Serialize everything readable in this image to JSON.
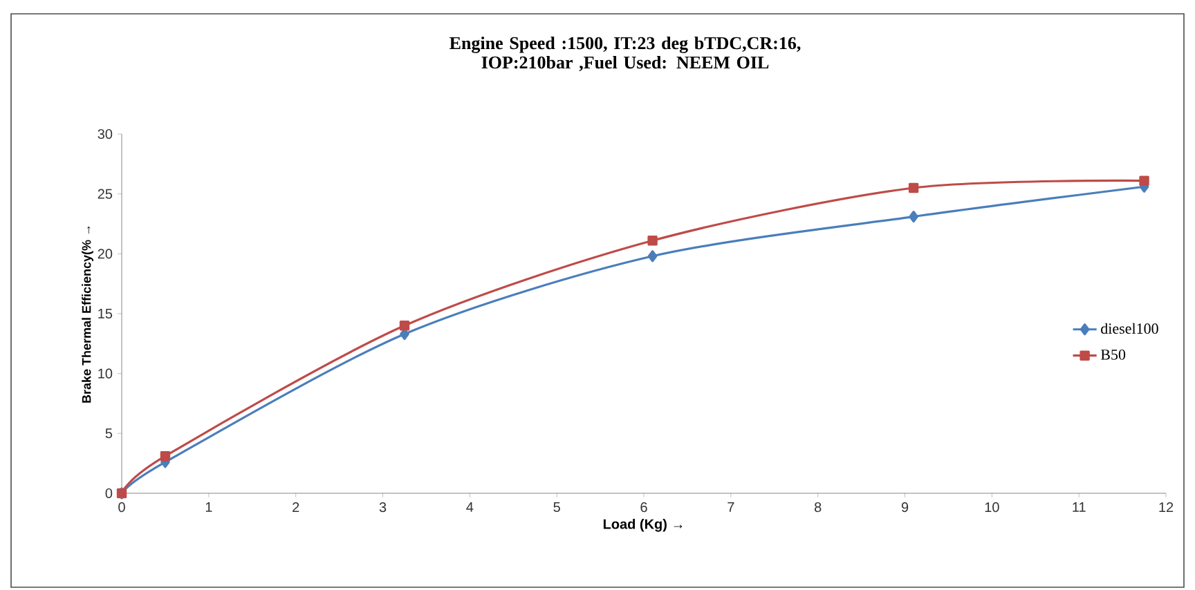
{
  "chart_data": {
    "type": "line",
    "title": "Engine Speed :1500, IT:23 deg bTDC,CR:16, IOP:210bar ,Fuel Used: NEEM OIL",
    "xlabel": "Load (Kg) →",
    "ylabel": "Brake Thermal Efficiency(% →",
    "x": [
      0,
      0.5,
      3.25,
      6.1,
      9.1,
      11.75
    ],
    "series": [
      {
        "name": "diesel100",
        "color": "#4a7ebb",
        "marker": "diamond",
        "values": [
          0,
          2.6,
          13.3,
          19.8,
          23.1,
          25.6
        ]
      },
      {
        "name": "B50",
        "color": "#be4b48",
        "marker": "square",
        "values": [
          0,
          3.1,
          14.0,
          21.1,
          25.5,
          26.1
        ]
      }
    ],
    "xlim": [
      0,
      12
    ],
    "xticks": [
      0,
      1,
      2,
      3,
      4,
      5,
      6,
      7,
      8,
      9,
      10,
      11,
      12
    ],
    "ylim": [
      0,
      30
    ],
    "yticks": [
      0,
      5,
      10,
      15,
      20,
      25,
      30
    ],
    "grid": false,
    "legend": "right",
    "line_style": "solid"
  }
}
